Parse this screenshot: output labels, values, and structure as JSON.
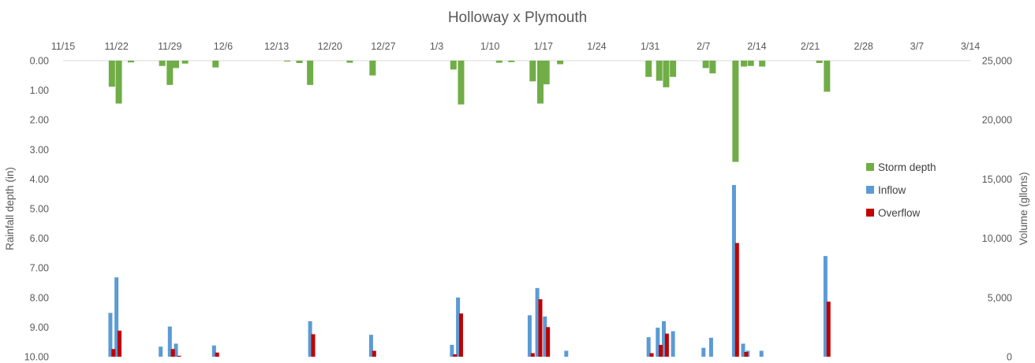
{
  "chart_data": {
    "type": "bar",
    "title": "Holloway x Plymouth",
    "x_tick_labels": [
      "11/15",
      "11/22",
      "11/29",
      "12/6",
      "12/13",
      "12/20",
      "12/27",
      "1/3",
      "1/10",
      "1/17",
      "1/24",
      "1/31",
      "2/7",
      "2/14",
      "2/21",
      "2/28",
      "3/7",
      "3/14"
    ],
    "x_range_days": [
      0,
      119
    ],
    "y_left": {
      "label": "Rainfall depth (in)",
      "range": [
        0,
        10
      ],
      "inverted": true,
      "ticks": [
        "0.00",
        "1.00",
        "2.00",
        "3.00",
        "4.00",
        "5.00",
        "6.00",
        "7.00",
        "8.00",
        "9.00",
        "10.00"
      ]
    },
    "y_right": {
      "label": "Volume (gllons)",
      "range": [
        0,
        25000
      ],
      "ticks": [
        "0",
        "5,000",
        "10,000",
        "15,000",
        "20,000",
        "25,000"
      ]
    },
    "legend": {
      "placement": "right",
      "entries": [
        {
          "name": "Storm depth",
          "color": "#70AD47"
        },
        {
          "name": "Inflow",
          "color": "#5B9BD5"
        },
        {
          "name": "Overflow",
          "color": "#C00000"
        }
      ]
    },
    "grid": false,
    "series": [
      {
        "name": "Storm depth",
        "axis": "left",
        "color": "#70AD47",
        "points": [
          {
            "x": 6.4,
            "y": 0.88
          },
          {
            "x": 7.3,
            "y": 1.45
          },
          {
            "x": 8.9,
            "y": 0.06
          },
          {
            "x": 13.0,
            "y": 0.18
          },
          {
            "x": 14.0,
            "y": 0.82
          },
          {
            "x": 14.8,
            "y": 0.25
          },
          {
            "x": 16.0,
            "y": 0.1
          },
          {
            "x": 20.0,
            "y": 0.23
          },
          {
            "x": 29.4,
            "y": 0.03
          },
          {
            "x": 31.0,
            "y": 0.08
          },
          {
            "x": 32.4,
            "y": 0.82
          },
          {
            "x": 37.6,
            "y": 0.07
          },
          {
            "x": 40.6,
            "y": 0.5
          },
          {
            "x": 51.2,
            "y": 0.3
          },
          {
            "x": 52.2,
            "y": 1.48
          },
          {
            "x": 57.2,
            "y": 0.07
          },
          {
            "x": 58.8,
            "y": 0.05
          },
          {
            "x": 61.6,
            "y": 0.7
          },
          {
            "x": 62.6,
            "y": 1.45
          },
          {
            "x": 63.4,
            "y": 0.8
          },
          {
            "x": 65.2,
            "y": 0.12
          },
          {
            "x": 76.8,
            "y": 0.55
          },
          {
            "x": 78.2,
            "y": 0.68
          },
          {
            "x": 79.1,
            "y": 0.9
          },
          {
            "x": 80.0,
            "y": 0.55
          },
          {
            "x": 84.3,
            "y": 0.25
          },
          {
            "x": 85.2,
            "y": 0.43
          },
          {
            "x": 88.2,
            "y": 3.42
          },
          {
            "x": 89.3,
            "y": 0.2
          },
          {
            "x": 90.2,
            "y": 0.18
          },
          {
            "x": 91.7,
            "y": 0.2
          },
          {
            "x": 99.2,
            "y": 0.08
          },
          {
            "x": 100.2,
            "y": 1.05
          }
        ]
      },
      {
        "name": "Inflow",
        "axis": "right",
        "color": "#5B9BD5",
        "points": [
          {
            "x": 6.2,
            "y": 3700
          },
          {
            "x": 7.0,
            "y": 6700
          },
          {
            "x": 12.8,
            "y": 850
          },
          {
            "x": 14.0,
            "y": 2550
          },
          {
            "x": 14.8,
            "y": 1100
          },
          {
            "x": 19.8,
            "y": 950
          },
          {
            "x": 32.4,
            "y": 3000
          },
          {
            "x": 40.4,
            "y": 1850
          },
          {
            "x": 51.0,
            "y": 1000
          },
          {
            "x": 51.8,
            "y": 5000
          },
          {
            "x": 61.2,
            "y": 3500
          },
          {
            "x": 62.2,
            "y": 5800
          },
          {
            "x": 63.2,
            "y": 3400
          },
          {
            "x": 66.0,
            "y": 500
          },
          {
            "x": 76.8,
            "y": 1650
          },
          {
            "x": 78.0,
            "y": 2450
          },
          {
            "x": 78.8,
            "y": 3000
          },
          {
            "x": 80.0,
            "y": 2150
          },
          {
            "x": 84.0,
            "y": 750
          },
          {
            "x": 85.0,
            "y": 1600
          },
          {
            "x": 88.0,
            "y": 14500
          },
          {
            "x": 89.2,
            "y": 1100
          },
          {
            "x": 89.8,
            "y": 500
          },
          {
            "x": 91.6,
            "y": 500
          },
          {
            "x": 100.0,
            "y": 8500
          }
        ]
      },
      {
        "name": "Overflow",
        "axis": "right",
        "color": "#C00000",
        "points": [
          {
            "x": 6.6,
            "y": 650
          },
          {
            "x": 7.4,
            "y": 2200
          },
          {
            "x": 14.4,
            "y": 650
          },
          {
            "x": 15.2,
            "y": 80
          },
          {
            "x": 20.2,
            "y": 350
          },
          {
            "x": 32.8,
            "y": 1900
          },
          {
            "x": 40.8,
            "y": 500
          },
          {
            "x": 51.4,
            "y": 200
          },
          {
            "x": 52.2,
            "y": 3650
          },
          {
            "x": 61.6,
            "y": 300
          },
          {
            "x": 62.6,
            "y": 4850
          },
          {
            "x": 63.6,
            "y": 2500
          },
          {
            "x": 77.2,
            "y": 300
          },
          {
            "x": 78.4,
            "y": 1000
          },
          {
            "x": 79.2,
            "y": 1950
          },
          {
            "x": 88.4,
            "y": 9600
          },
          {
            "x": 89.6,
            "y": 400
          },
          {
            "x": 100.4,
            "y": 4650
          }
        ]
      }
    ]
  }
}
